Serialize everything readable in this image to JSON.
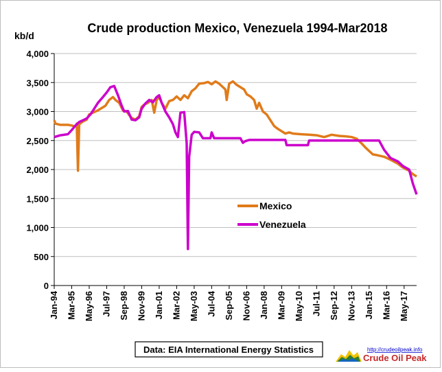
{
  "chart_data": {
    "type": "line",
    "title": "Crude production  Mexico, Venezuela 1994-Mar2018",
    "ylabel": "kb/d",
    "ylim": [
      0,
      4000
    ],
    "yticks": [
      "0",
      "500",
      "1,000",
      "1,500",
      "2,000",
      "2,500",
      "3,000",
      "3,500",
      "4,000"
    ],
    "xlim": [
      "1994-01",
      "2018-03"
    ],
    "xticks": [
      "Jan-94",
      "Mar-95",
      "May-96",
      "Jul-97",
      "Sep-98",
      "Nov-99",
      "Jan-01",
      "Mar-02",
      "May-03",
      "Jul-04",
      "Sep-05",
      "Nov-06",
      "Jan-08",
      "Mar-09",
      "May-10",
      "Jul-11",
      "Sep-12",
      "Nov-13",
      "Jan-15",
      "Mar-16",
      "May-17"
    ],
    "grid": "horizontal",
    "legend_position": "center-right",
    "series": [
      {
        "name": "Mexico",
        "color": "#e07b1a",
        "points": [
          [
            "1994-01",
            2850
          ],
          [
            "1994-02",
            2790
          ],
          [
            "1994-06",
            2770
          ],
          [
            "1994-12",
            2770
          ],
          [
            "1995-03",
            2760
          ],
          [
            "1995-06",
            2740
          ],
          [
            "1995-07",
            2790
          ],
          [
            "1995-08",
            1980
          ],
          [
            "1995-09",
            2780
          ],
          [
            "1995-12",
            2830
          ],
          [
            "1996-03",
            2860
          ],
          [
            "1996-05",
            2950
          ],
          [
            "1996-08",
            2980
          ],
          [
            "1996-12",
            3020
          ],
          [
            "1997-03",
            3060
          ],
          [
            "1997-06",
            3100
          ],
          [
            "1997-09",
            3200
          ],
          [
            "1997-12",
            3250
          ],
          [
            "1998-02",
            3200
          ],
          [
            "1998-05",
            3150
          ],
          [
            "1998-08",
            3020
          ],
          [
            "1998-11",
            3000
          ],
          [
            "1999-01",
            2940
          ],
          [
            "1999-03",
            2890
          ],
          [
            "1999-06",
            2860
          ],
          [
            "1999-09",
            2920
          ],
          [
            "1999-11",
            3080
          ],
          [
            "2000-01",
            3120
          ],
          [
            "2000-04",
            3150
          ],
          [
            "2000-07",
            3200
          ],
          [
            "2000-09",
            2980
          ],
          [
            "2000-11",
            3200
          ],
          [
            "2001-01",
            3250
          ],
          [
            "2001-03",
            3150
          ],
          [
            "2001-06",
            3050
          ],
          [
            "2001-09",
            3180
          ],
          [
            "2001-12",
            3200
          ],
          [
            "2002-03",
            3260
          ],
          [
            "2002-06",
            3200
          ],
          [
            "2002-09",
            3280
          ],
          [
            "2002-12",
            3230
          ],
          [
            "2003-03",
            3350
          ],
          [
            "2003-06",
            3400
          ],
          [
            "2003-09",
            3480
          ],
          [
            "2004-01",
            3490
          ],
          [
            "2004-04",
            3510
          ],
          [
            "2004-07",
            3470
          ],
          [
            "2004-10",
            3520
          ],
          [
            "2005-01",
            3480
          ],
          [
            "2005-04",
            3420
          ],
          [
            "2005-06",
            3380
          ],
          [
            "2005-07",
            3200
          ],
          [
            "2005-09",
            3480
          ],
          [
            "2005-12",
            3520
          ],
          [
            "2006-03",
            3460
          ],
          [
            "2006-06",
            3420
          ],
          [
            "2006-09",
            3380
          ],
          [
            "2006-11",
            3300
          ],
          [
            "2007-02",
            3260
          ],
          [
            "2007-05",
            3200
          ],
          [
            "2007-07",
            3050
          ],
          [
            "2007-09",
            3150
          ],
          [
            "2007-12",
            3000
          ],
          [
            "2008-03",
            2950
          ],
          [
            "2008-06",
            2850
          ],
          [
            "2008-09",
            2750
          ],
          [
            "2008-12",
            2700
          ],
          [
            "2009-03",
            2660
          ],
          [
            "2009-06",
            2620
          ],
          [
            "2009-09",
            2640
          ],
          [
            "2009-12",
            2620
          ],
          [
            "2010-06",
            2610
          ],
          [
            "2011-01",
            2600
          ],
          [
            "2011-07",
            2590
          ],
          [
            "2012-01",
            2560
          ],
          [
            "2012-07",
            2600
          ],
          [
            "2013-01",
            2580
          ],
          [
            "2013-07",
            2570
          ],
          [
            "2013-11",
            2560
          ],
          [
            "2014-03",
            2530
          ],
          [
            "2014-07",
            2450
          ],
          [
            "2014-10",
            2380
          ],
          [
            "2015-01",
            2320
          ],
          [
            "2015-04",
            2260
          ],
          [
            "2015-07",
            2250
          ],
          [
            "2016-01",
            2220
          ],
          [
            "2016-06",
            2170
          ],
          [
            "2016-12",
            2100
          ],
          [
            "2017-03",
            2050
          ],
          [
            "2017-06",
            2010
          ],
          [
            "2017-09",
            1980
          ],
          [
            "2017-12",
            1920
          ],
          [
            "2018-03",
            1880
          ]
        ]
      },
      {
        "name": "Venezuela",
        "color": "#cc00cc",
        "points": [
          [
            "1994-01",
            2560
          ],
          [
            "1994-06",
            2590
          ],
          [
            "1994-12",
            2610
          ],
          [
            "1995-03",
            2680
          ],
          [
            "1995-06",
            2760
          ],
          [
            "1995-09",
            2820
          ],
          [
            "1995-12",
            2850
          ],
          [
            "1996-03",
            2880
          ],
          [
            "1996-06",
            2950
          ],
          [
            "1996-09",
            3050
          ],
          [
            "1996-12",
            3150
          ],
          [
            "1997-04",
            3250
          ],
          [
            "1997-07",
            3330
          ],
          [
            "1997-10",
            3420
          ],
          [
            "1998-01",
            3440
          ],
          [
            "1998-04",
            3280
          ],
          [
            "1998-07",
            3100
          ],
          [
            "1998-09",
            3000
          ],
          [
            "1998-12",
            3010
          ],
          [
            "1999-03",
            2860
          ],
          [
            "1999-06",
            2850
          ],
          [
            "1999-09",
            2900
          ],
          [
            "1999-11",
            3050
          ],
          [
            "2000-02",
            3140
          ],
          [
            "2000-05",
            3200
          ],
          [
            "2000-08",
            3160
          ],
          [
            "2000-11",
            3250
          ],
          [
            "2001-01",
            3280
          ],
          [
            "2001-03",
            3150
          ],
          [
            "2001-06",
            3000
          ],
          [
            "2001-09",
            2900
          ],
          [
            "2001-12",
            2780
          ],
          [
            "2002-02",
            2640
          ],
          [
            "2002-04",
            2560
          ],
          [
            "2002-06",
            2980
          ],
          [
            "2002-09",
            2990
          ],
          [
            "2002-11",
            2450
          ],
          [
            "2002-12",
            630
          ],
          [
            "2003-01",
            2220
          ],
          [
            "2003-03",
            2600
          ],
          [
            "2003-05",
            2650
          ],
          [
            "2003-09",
            2640
          ],
          [
            "2003-12",
            2540
          ],
          [
            "2004-06",
            2540
          ],
          [
            "2004-07",
            2640
          ],
          [
            "2004-09",
            2540
          ],
          [
            "2005-01",
            2540
          ],
          [
            "2006-06",
            2540
          ],
          [
            "2006-08",
            2460
          ],
          [
            "2006-10",
            2490
          ],
          [
            "2007-01",
            2510
          ],
          [
            "2008-06",
            2510
          ],
          [
            "2009-06",
            2510
          ],
          [
            "2009-07",
            2420
          ],
          [
            "2010-12",
            2420
          ],
          [
            "2011-01",
            2500
          ],
          [
            "2012-06",
            2500
          ],
          [
            "2013-06",
            2500
          ],
          [
            "2014-06",
            2500
          ],
          [
            "2015-01",
            2500
          ],
          [
            "2015-09",
            2500
          ],
          [
            "2016-01",
            2340
          ],
          [
            "2016-06",
            2200
          ],
          [
            "2016-12",
            2140
          ],
          [
            "2017-04",
            2060
          ],
          [
            "2017-09",
            2000
          ],
          [
            "2017-12",
            1760
          ],
          [
            "2018-03",
            1570
          ]
        ]
      }
    ]
  },
  "footer": {
    "source": "Data: EIA International Energy Statistics",
    "url": "http://crudeoilpeak.info",
    "brand": "Crude Oil Peak"
  },
  "colors": {
    "gridline": "#bfbfbf",
    "axis": "#000000"
  }
}
